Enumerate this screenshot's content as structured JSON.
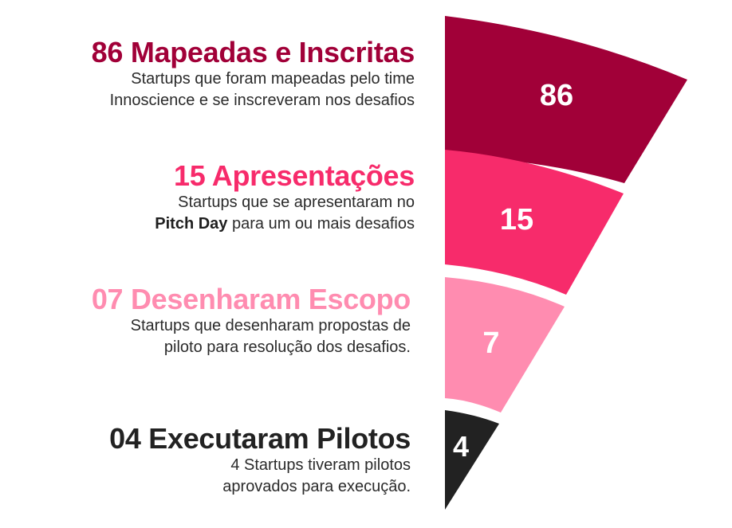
{
  "colors": {
    "stage_1": "#a10038",
    "stage_2": "#f72b6b",
    "stage_3": "#ff8cb0",
    "stage_4": "#222222",
    "value_text": "#ffffff"
  },
  "stages": [
    {
      "title": "86 Mapeadas e Inscritas",
      "description_line1": "Startups que foram mapeadas pelo time",
      "description_line2": "Innoscience e se inscreveram nos desafios",
      "value": 86,
      "value_label": "86",
      "color": "#a10038"
    },
    {
      "title": "15 Apresentações",
      "description_line1": "Startups que se apresentaram no",
      "description_line2_bold": "Pitch Day",
      "description_line2": " para um ou mais desafios",
      "value": 15,
      "value_label": "15",
      "color": "#f72b6b"
    },
    {
      "title": "07 Desenharam Escopo",
      "description_line1": "Startups que desenharam propostas de",
      "description_line2": "piloto para resolução dos desafios.",
      "value": 7,
      "value_label": "7",
      "color": "#ff8cb0"
    },
    {
      "title": "04 Executaram Pilotos",
      "description_line1": "4 Startups tiveram pilotos",
      "description_line2": "aprovados para execução.",
      "value": 4,
      "value_label": "4",
      "color": "#222222"
    }
  ]
}
